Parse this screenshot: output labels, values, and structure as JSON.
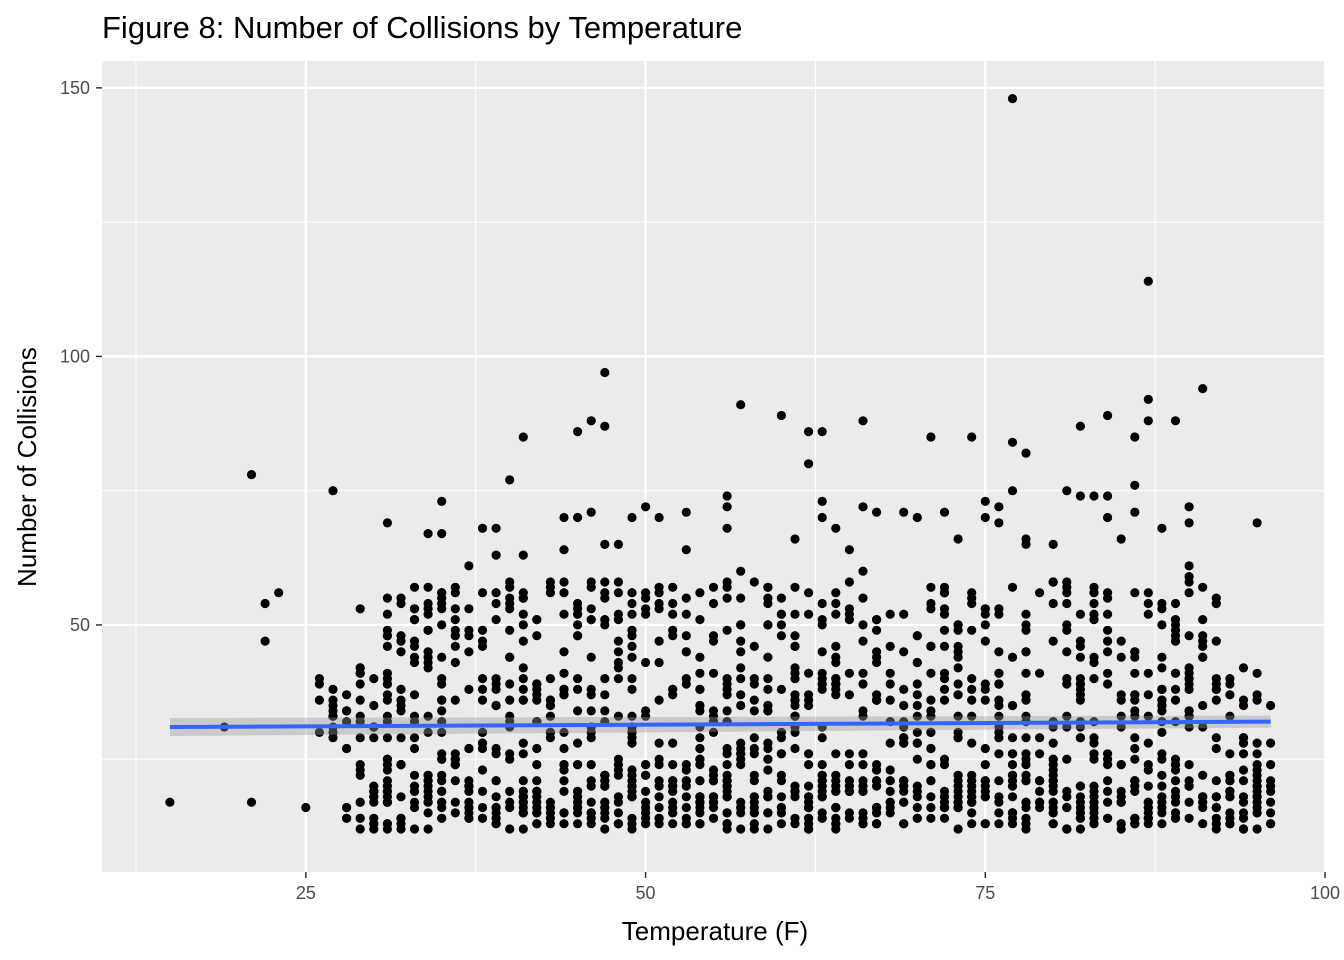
{
  "chart_data": {
    "type": "scatter",
    "title": "Figure 8: Number of Collisions by Temperature",
    "xlabel": "Temperature (F)",
    "ylabel": "Number of Collisions",
    "xlim": [
      10,
      100
    ],
    "ylim": [
      4,
      155
    ],
    "x_ticks": [
      25,
      50,
      75,
      100
    ],
    "x_tick_labels": [
      "25",
      "50",
      "75",
      "100"
    ],
    "y_ticks": [
      50,
      100,
      150
    ],
    "y_tick_labels": [
      "50",
      "100",
      "150"
    ],
    "grid": true,
    "legend": "none",
    "point_color": "#000000",
    "panel_color": "#ebebeb",
    "trend": {
      "type": "linear",
      "color": "#3366ff",
      "x": [
        15,
        96
      ],
      "y": [
        31,
        32
      ]
    },
    "outliers": [
      [
        15,
        17
      ],
      [
        19,
        31
      ],
      [
        21,
        78
      ],
      [
        21,
        17
      ],
      [
        22,
        54
      ],
      [
        22,
        47
      ],
      [
        23,
        56
      ],
      [
        25,
        16
      ],
      [
        27,
        75
      ],
      [
        27,
        33
      ],
      [
        27,
        29
      ],
      [
        29,
        53
      ],
      [
        29,
        22
      ],
      [
        31,
        69
      ],
      [
        33,
        53
      ],
      [
        34,
        67
      ],
      [
        34,
        57
      ],
      [
        35,
        73
      ],
      [
        35,
        67
      ],
      [
        35,
        56
      ],
      [
        36,
        48
      ],
      [
        37,
        61
      ],
      [
        38,
        68
      ],
      [
        39,
        68
      ],
      [
        39,
        63
      ],
      [
        40,
        77
      ],
      [
        41,
        85
      ],
      [
        41,
        63
      ],
      [
        44,
        70
      ],
      [
        44,
        64
      ],
      [
        45,
        86
      ],
      [
        45,
        70
      ],
      [
        46,
        88
      ],
      [
        46,
        71
      ],
      [
        47,
        97
      ],
      [
        47,
        87
      ],
      [
        47,
        65
      ],
      [
        48,
        65
      ],
      [
        49,
        70
      ],
      [
        50,
        72
      ],
      [
        51,
        70
      ],
      [
        53,
        71
      ],
      [
        53,
        64
      ],
      [
        56,
        74
      ],
      [
        56,
        72
      ],
      [
        56,
        68
      ],
      [
        57,
        91
      ],
      [
        57,
        60
      ],
      [
        60,
        89
      ],
      [
        61,
        66
      ],
      [
        62,
        86
      ],
      [
        62,
        80
      ],
      [
        63,
        86
      ],
      [
        63,
        73
      ],
      [
        63,
        70
      ],
      [
        64,
        68
      ],
      [
        65,
        64
      ],
      [
        66,
        88
      ],
      [
        66,
        72
      ],
      [
        66,
        60
      ],
      [
        67,
        71
      ],
      [
        69,
        71
      ],
      [
        70,
        70
      ],
      [
        71,
        85
      ],
      [
        72,
        71
      ],
      [
        73,
        66
      ],
      [
        74,
        85
      ],
      [
        75,
        73
      ],
      [
        75,
        70
      ],
      [
        76,
        72
      ],
      [
        76,
        69
      ],
      [
        77,
        148
      ],
      [
        77,
        84
      ],
      [
        77,
        75
      ],
      [
        78,
        82
      ],
      [
        78,
        66
      ],
      [
        78,
        65
      ],
      [
        80,
        65
      ],
      [
        81,
        75
      ],
      [
        82,
        87
      ],
      [
        82,
        74
      ],
      [
        83,
        74
      ],
      [
        84,
        89
      ],
      [
        84,
        74
      ],
      [
        84,
        70
      ],
      [
        85,
        66
      ],
      [
        86,
        85
      ],
      [
        86,
        76
      ],
      [
        86,
        71
      ],
      [
        87,
        114
      ],
      [
        87,
        92
      ],
      [
        87,
        88
      ],
      [
        88,
        68
      ],
      [
        89,
        88
      ],
      [
        90,
        72
      ],
      [
        90,
        69
      ],
      [
        90,
        61
      ],
      [
        90,
        59
      ],
      [
        91,
        94
      ],
      [
        92,
        54
      ],
      [
        95,
        69
      ],
      [
        95,
        16
      ]
    ],
    "bands": [
      {
        "x_min": 28,
        "x_max": 96,
        "y_min": 12,
        "y_max": 22,
        "count": 620,
        "seed": 11
      },
      {
        "x_min": 26,
        "x_max": 96,
        "y_min": 23,
        "y_max": 42,
        "count": 520,
        "seed": 23
      },
      {
        "x_min": 30,
        "x_max": 93,
        "y_min": 43,
        "y_max": 58,
        "count": 300,
        "seed": 37
      }
    ]
  }
}
